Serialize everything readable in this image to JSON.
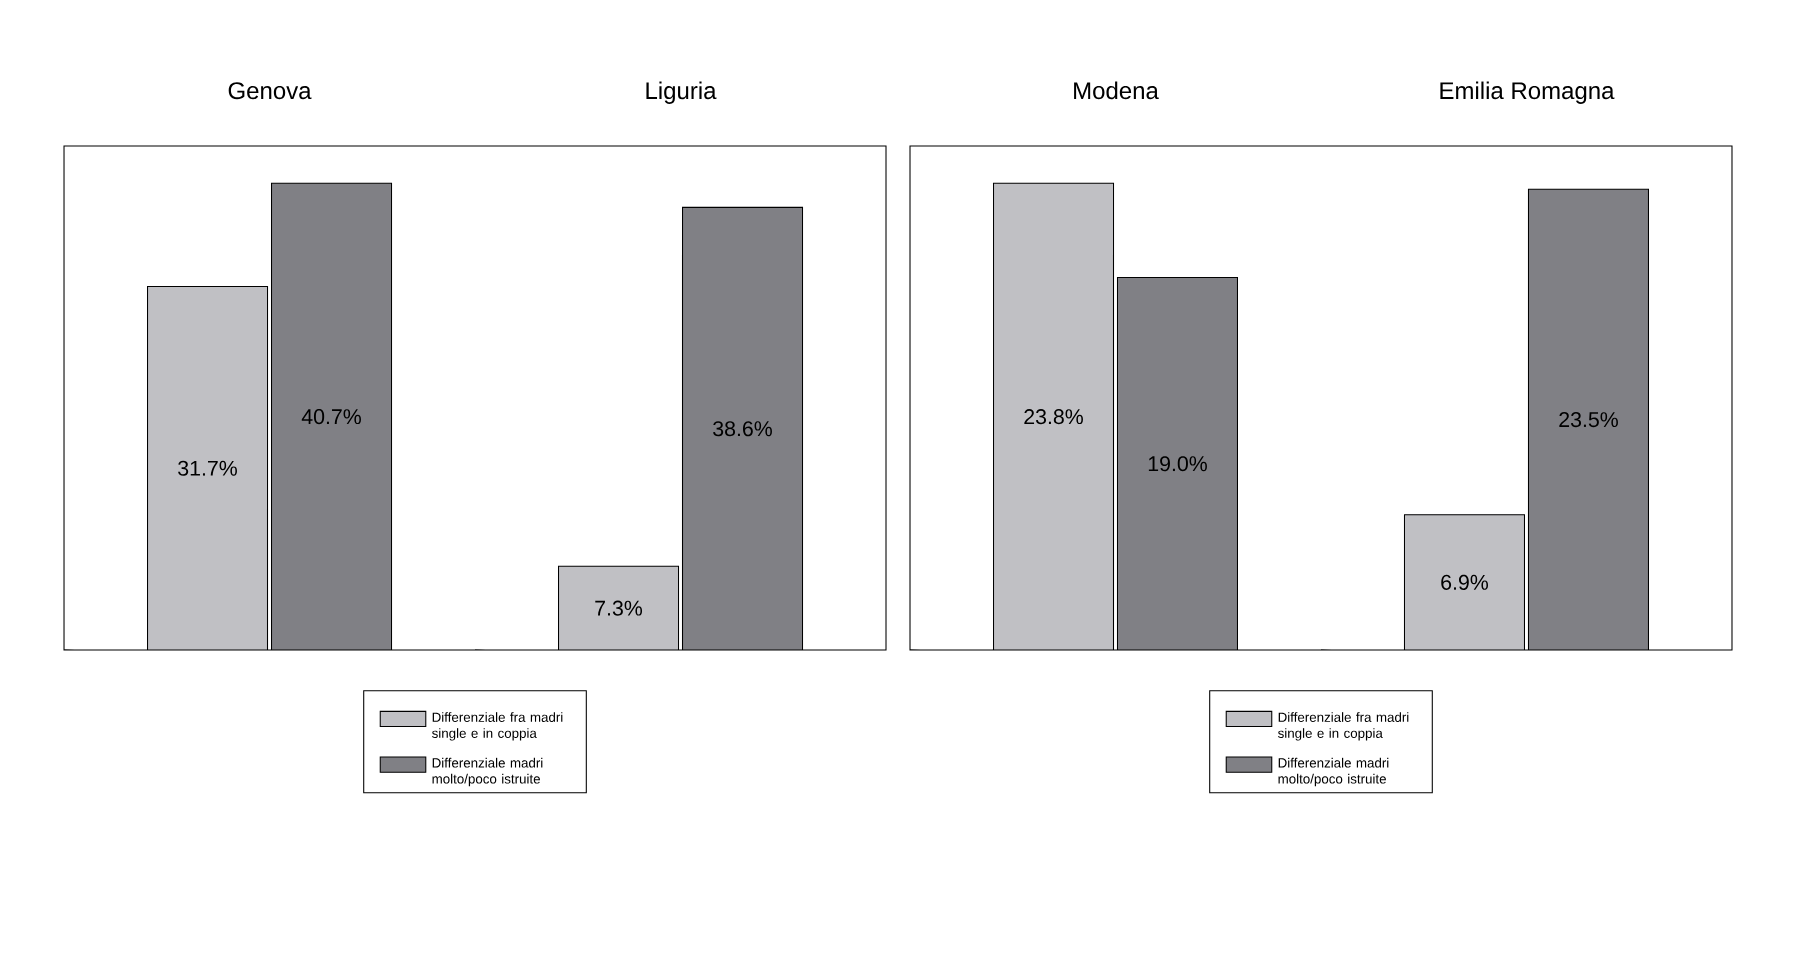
{
  "chart_data": [
    {
      "type": "bar",
      "categories": [
        "Genova",
        "Liguria"
      ],
      "legend": "bottom",
      "series": [
        {
          "name": "Differenziale fra madri single e in coppia",
          "color": "#c0c0c4",
          "values": [
            31.7,
            7.3
          ],
          "value_labels": [
            "31.7%",
            "7.3%"
          ]
        },
        {
          "name": "Differenziale madri molto/poco istruite",
          "color": "#808085",
          "values": [
            40.7,
            38.6
          ],
          "value_labels": [
            "40.7%",
            "38.6%"
          ]
        }
      ]
    },
    {
      "type": "bar",
      "categories": [
        "Modena",
        "Emilia Romagna"
      ],
      "legend": "bottom",
      "series": [
        {
          "name": "Differenziale fra madri single e in coppia",
          "color": "#c0c0c4",
          "values": [
            23.8,
            6.9
          ],
          "value_labels": [
            "23.8%",
            "6.9%"
          ]
        },
        {
          "name": "Differenziale madri molto/poco istruite",
          "color": "#808085",
          "values": [
            19.0,
            23.5
          ],
          "value_labels": [
            "19.0%",
            "23.5%"
          ]
        }
      ]
    }
  ]
}
